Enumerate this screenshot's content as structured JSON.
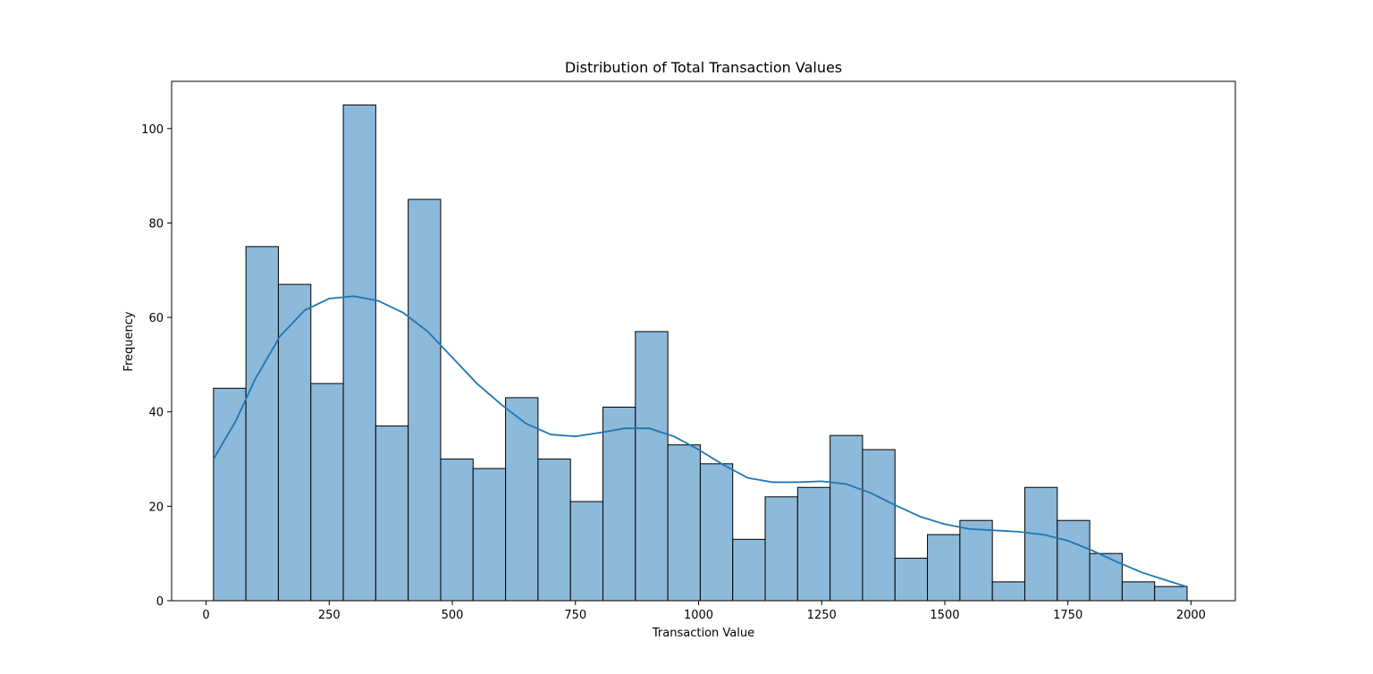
{
  "chart_data": {
    "type": "bar",
    "title": "Distribution of Total Transaction Values",
    "xlabel": "Transaction Value",
    "ylabel": "Frequency",
    "xlim": [
      -70,
      2090
    ],
    "ylim": [
      0,
      110
    ],
    "xticks": [
      0,
      250,
      500,
      750,
      1000,
      1250,
      1500,
      1750,
      2000
    ],
    "yticks": [
      0,
      20,
      40,
      60,
      80,
      100
    ],
    "grid": false,
    "legend": "none",
    "bin_start": 15,
    "bin_width": 65.9,
    "values": [
      45,
      75,
      67,
      46,
      105,
      37,
      85,
      30,
      28,
      43,
      30,
      21,
      41,
      57,
      33,
      29,
      13,
      22,
      24,
      35,
      32,
      9,
      14,
      17,
      4,
      24,
      17,
      10,
      4,
      3
    ],
    "kde": {
      "x": [
        15,
        60,
        100,
        150,
        200,
        250,
        300,
        350,
        400,
        450,
        500,
        550,
        600,
        650,
        700,
        750,
        800,
        850,
        900,
        950,
        1000,
        1050,
        1100,
        1150,
        1200,
        1250,
        1300,
        1350,
        1400,
        1450,
        1500,
        1550,
        1600,
        1650,
        1700,
        1750,
        1800,
        1850,
        1900,
        1950,
        1990
      ],
      "y": [
        30,
        38,
        47,
        56,
        61.5,
        64,
        64.5,
        63.5,
        61,
        57,
        51.5,
        46,
        41.5,
        37.5,
        35.2,
        34.8,
        35.6,
        36.5,
        36.5,
        34.8,
        32,
        28.8,
        26,
        25.1,
        25.1,
        25.3,
        24.7,
        22.8,
        20.2,
        17.8,
        16.2,
        15.2,
        14.9,
        14.6,
        14,
        12.7,
        10.6,
        8.2,
        6,
        4.3,
        3
      ]
    },
    "colors": {
      "bar_fill": "#8db9da",
      "bar_edge": "#000000",
      "kde_line": "#1f77b4"
    }
  }
}
